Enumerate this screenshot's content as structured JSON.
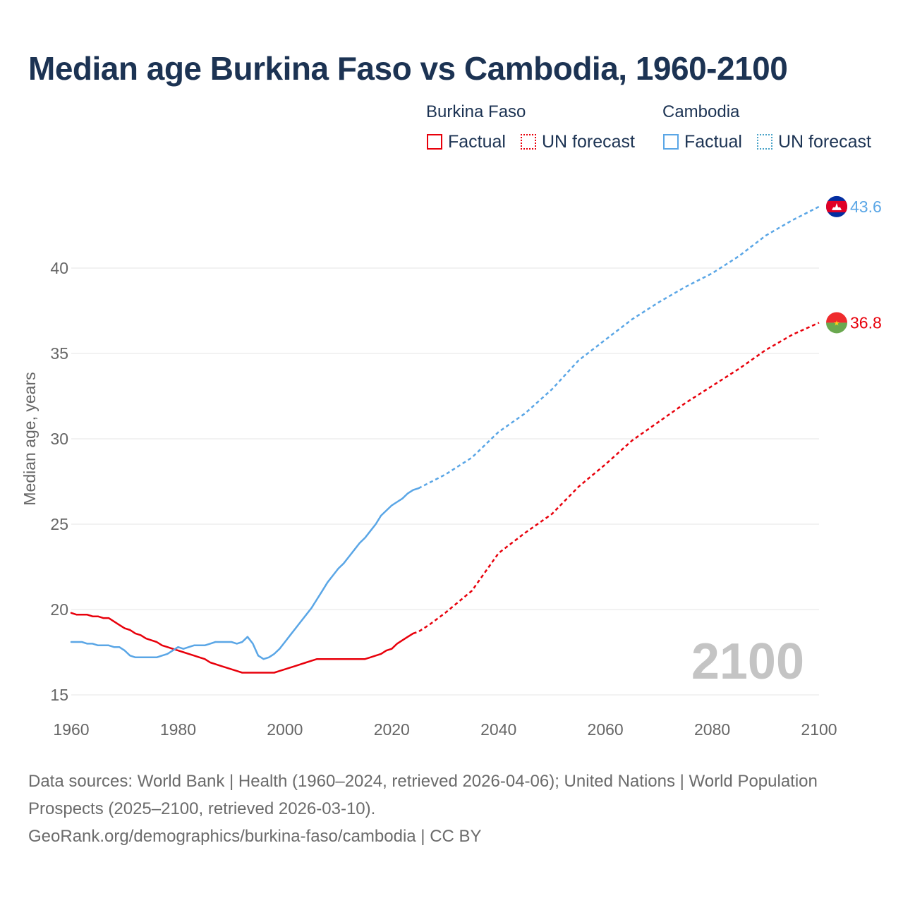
{
  "title": "Median age Burkina Faso vs Cambodia, 1960-2100",
  "legend": {
    "groups": [
      {
        "name": "Burkina Faso",
        "factual_label": "Factual",
        "forecast_label": "UN forecast",
        "color": "#e8000b"
      },
      {
        "name": "Cambodia",
        "factual_label": "Factual",
        "forecast_label": "UN forecast",
        "color": "#5aa6e6"
      }
    ]
  },
  "colors": {
    "burkina": "#e8000b",
    "cambodia": "#5aa6e6",
    "grid": "#e6e6e6",
    "axis_text": "#666666",
    "year_watermark": "#c4c4c4"
  },
  "chart_data": {
    "type": "line",
    "title": "Median age Burkina Faso vs Cambodia, 1960-2100",
    "xlabel": "",
    "ylabel": "Median age, years",
    "xlim": [
      1960,
      2100
    ],
    "ylim": [
      14,
      44.5
    ],
    "x_ticks": [
      1960,
      1980,
      2000,
      2020,
      2040,
      2060,
      2080,
      2100
    ],
    "y_ticks": [
      15,
      20,
      25,
      30,
      35,
      40
    ],
    "current_year_label": "2100",
    "series": [
      {
        "name": "Burkina Faso",
        "kind": "factual",
        "end_label": "36.8",
        "points": [
          [
            1960,
            19.8
          ],
          [
            1961,
            19.7
          ],
          [
            1963,
            19.7
          ],
          [
            1964,
            19.6
          ],
          [
            1965,
            19.6
          ],
          [
            1966,
            19.5
          ],
          [
            1967,
            19.5
          ],
          [
            1968,
            19.3
          ],
          [
            1969,
            19.1
          ],
          [
            1970,
            18.9
          ],
          [
            1971,
            18.8
          ],
          [
            1972,
            18.6
          ],
          [
            1973,
            18.5
          ],
          [
            1974,
            18.3
          ],
          [
            1975,
            18.2
          ],
          [
            1976,
            18.1
          ],
          [
            1977,
            17.9
          ],
          [
            1978,
            17.8
          ],
          [
            1979,
            17.7
          ],
          [
            1980,
            17.6
          ],
          [
            1981,
            17.5
          ],
          [
            1982,
            17.4
          ],
          [
            1983,
            17.3
          ],
          [
            1984,
            17.2
          ],
          [
            1985,
            17.1
          ],
          [
            1986,
            16.9
          ],
          [
            1987,
            16.8
          ],
          [
            1988,
            16.7
          ],
          [
            1989,
            16.6
          ],
          [
            1990,
            16.5
          ],
          [
            1991,
            16.4
          ],
          [
            1992,
            16.3
          ],
          [
            1994,
            16.3
          ],
          [
            1996,
            16.3
          ],
          [
            1998,
            16.3
          ],
          [
            1999,
            16.4
          ],
          [
            2000,
            16.5
          ],
          [
            2001,
            16.6
          ],
          [
            2002,
            16.7
          ],
          [
            2003,
            16.8
          ],
          [
            2004,
            16.9
          ],
          [
            2005,
            17.0
          ],
          [
            2006,
            17.1
          ],
          [
            2008,
            17.1
          ],
          [
            2010,
            17.1
          ],
          [
            2012,
            17.1
          ],
          [
            2014,
            17.1
          ],
          [
            2015,
            17.1
          ],
          [
            2016,
            17.2
          ],
          [
            2017,
            17.3
          ],
          [
            2018,
            17.4
          ],
          [
            2019,
            17.6
          ],
          [
            2020,
            17.7
          ],
          [
            2021,
            18.0
          ],
          [
            2022,
            18.2
          ],
          [
            2023,
            18.4
          ],
          [
            2024,
            18.6
          ]
        ]
      },
      {
        "name": "Burkina Faso",
        "kind": "forecast",
        "points": [
          [
            2024,
            18.6
          ],
          [
            2025,
            18.7
          ],
          [
            2027,
            19.1
          ],
          [
            2030,
            19.8
          ],
          [
            2035,
            21.1
          ],
          [
            2040,
            23.3
          ],
          [
            2045,
            24.5
          ],
          [
            2050,
            25.6
          ],
          [
            2055,
            27.2
          ],
          [
            2060,
            28.5
          ],
          [
            2065,
            29.9
          ],
          [
            2070,
            31.0
          ],
          [
            2075,
            32.1
          ],
          [
            2080,
            33.1
          ],
          [
            2085,
            34.1
          ],
          [
            2090,
            35.2
          ],
          [
            2095,
            36.1
          ],
          [
            2100,
            36.8
          ]
        ]
      },
      {
        "name": "Cambodia",
        "kind": "factual",
        "end_label": "43.6",
        "points": [
          [
            1960,
            18.1
          ],
          [
            1962,
            18.1
          ],
          [
            1963,
            18.0
          ],
          [
            1964,
            18.0
          ],
          [
            1965,
            17.9
          ],
          [
            1967,
            17.9
          ],
          [
            1968,
            17.8
          ],
          [
            1969,
            17.8
          ],
          [
            1970,
            17.6
          ],
          [
            1971,
            17.3
          ],
          [
            1972,
            17.2
          ],
          [
            1975,
            17.2
          ],
          [
            1976,
            17.2
          ],
          [
            1977,
            17.3
          ],
          [
            1978,
            17.4
          ],
          [
            1979,
            17.6
          ],
          [
            1980,
            17.8
          ],
          [
            1981,
            17.7
          ],
          [
            1982,
            17.8
          ],
          [
            1983,
            17.9
          ],
          [
            1985,
            17.9
          ],
          [
            1986,
            18.0
          ],
          [
            1987,
            18.1
          ],
          [
            1990,
            18.1
          ],
          [
            1991,
            18.0
          ],
          [
            1992,
            18.1
          ],
          [
            1993,
            18.4
          ],
          [
            1994,
            18.0
          ],
          [
            1995,
            17.3
          ],
          [
            1996,
            17.1
          ],
          [
            1997,
            17.2
          ],
          [
            1998,
            17.4
          ],
          [
            1999,
            17.7
          ],
          [
            2000,
            18.1
          ],
          [
            2001,
            18.5
          ],
          [
            2002,
            18.9
          ],
          [
            2003,
            19.3
          ],
          [
            2004,
            19.7
          ],
          [
            2005,
            20.1
          ],
          [
            2006,
            20.6
          ],
          [
            2007,
            21.1
          ],
          [
            2008,
            21.6
          ],
          [
            2009,
            22.0
          ],
          [
            2010,
            22.4
          ],
          [
            2011,
            22.7
          ],
          [
            2012,
            23.1
          ],
          [
            2013,
            23.5
          ],
          [
            2014,
            23.9
          ],
          [
            2015,
            24.2
          ],
          [
            2016,
            24.6
          ],
          [
            2017,
            25.0
          ],
          [
            2018,
            25.5
          ],
          [
            2019,
            25.8
          ],
          [
            2020,
            26.1
          ],
          [
            2021,
            26.3
          ],
          [
            2022,
            26.5
          ],
          [
            2023,
            26.8
          ],
          [
            2024,
            27.0
          ],
          [
            2025,
            27.1
          ]
        ]
      },
      {
        "name": "Cambodia",
        "kind": "forecast",
        "points": [
          [
            2025,
            27.1
          ],
          [
            2030,
            27.9
          ],
          [
            2035,
            28.9
          ],
          [
            2040,
            30.4
          ],
          [
            2045,
            31.5
          ],
          [
            2050,
            32.9
          ],
          [
            2055,
            34.6
          ],
          [
            2060,
            35.8
          ],
          [
            2065,
            37.0
          ],
          [
            2070,
            38.0
          ],
          [
            2075,
            38.9
          ],
          [
            2080,
            39.7
          ],
          [
            2085,
            40.7
          ],
          [
            2090,
            41.9
          ],
          [
            2095,
            42.8
          ],
          [
            2100,
            43.6
          ]
        ]
      }
    ]
  },
  "footer": {
    "line1": "Data sources: World Bank | Health (1960–2024, retrieved 2026-04-06); United Nations | World Population Prospects (2025–2100, retrieved 2026-03-10).",
    "line2": "GeoRank.org/demographics/burkina-faso/cambodia | CC BY"
  }
}
